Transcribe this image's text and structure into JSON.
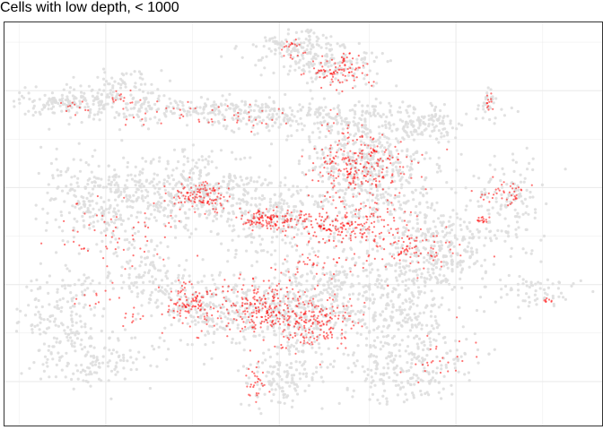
{
  "chart_data": {
    "type": "scatter",
    "title": "Cells with low depth, < 1000",
    "xlabel": "",
    "ylabel": "",
    "grid": true,
    "axes_ticks_shown": false,
    "colors": {
      "background_points": "#dedede",
      "highlight_points": "#ff0000",
      "panel_border": "#333333",
      "gridline": "#ebebeb"
    },
    "series": [
      {
        "role": "background",
        "seed": 7,
        "clusters": [
          {
            "cx": 0.11,
            "cy": 0.2,
            "sx": 0.04,
            "sy": 0.02,
            "n": 140
          },
          {
            "cx": 0.2,
            "cy": 0.17,
            "sx": 0.03,
            "sy": 0.03,
            "n": 90
          },
          {
            "cx": 0.34,
            "cy": 0.22,
            "sx": 0.09,
            "sy": 0.018,
            "n": 220
          },
          {
            "cx": 0.55,
            "cy": 0.24,
            "sx": 0.1,
            "sy": 0.02,
            "n": 220
          },
          {
            "cx": 0.71,
            "cy": 0.26,
            "sx": 0.03,
            "sy": 0.02,
            "n": 80
          },
          {
            "cx": 0.49,
            "cy": 0.06,
            "sx": 0.04,
            "sy": 0.02,
            "n": 120
          },
          {
            "cx": 0.55,
            "cy": 0.11,
            "sx": 0.04,
            "sy": 0.025,
            "n": 130
          },
          {
            "cx": 0.18,
            "cy": 0.44,
            "sx": 0.06,
            "sy": 0.05,
            "n": 330
          },
          {
            "cx": 0.32,
            "cy": 0.42,
            "sx": 0.055,
            "sy": 0.045,
            "n": 280
          },
          {
            "cx": 0.45,
            "cy": 0.48,
            "sx": 0.06,
            "sy": 0.05,
            "n": 280
          },
          {
            "cx": 0.62,
            "cy": 0.41,
            "sx": 0.06,
            "sy": 0.07,
            "n": 300
          },
          {
            "cx": 0.6,
            "cy": 0.33,
            "sx": 0.05,
            "sy": 0.05,
            "n": 220
          },
          {
            "cx": 0.74,
            "cy": 0.55,
            "sx": 0.04,
            "sy": 0.05,
            "n": 200
          },
          {
            "cx": 0.68,
            "cy": 0.62,
            "sx": 0.05,
            "sy": 0.05,
            "n": 200
          },
          {
            "cx": 0.1,
            "cy": 0.73,
            "sx": 0.04,
            "sy": 0.08,
            "n": 200
          },
          {
            "cx": 0.31,
            "cy": 0.7,
            "sx": 0.04,
            "sy": 0.04,
            "n": 120
          },
          {
            "cx": 0.42,
            "cy": 0.71,
            "sx": 0.06,
            "sy": 0.04,
            "n": 220
          },
          {
            "cx": 0.52,
            "cy": 0.73,
            "sx": 0.05,
            "sy": 0.04,
            "n": 200
          },
          {
            "cx": 0.66,
            "cy": 0.74,
            "sx": 0.04,
            "sy": 0.04,
            "n": 160
          },
          {
            "cx": 0.68,
            "cy": 0.86,
            "sx": 0.06,
            "sy": 0.04,
            "n": 230
          },
          {
            "cx": 0.46,
            "cy": 0.88,
            "sx": 0.03,
            "sy": 0.04,
            "n": 120
          },
          {
            "cx": 0.85,
            "cy": 0.45,
            "sx": 0.03,
            "sy": 0.06,
            "n": 130
          },
          {
            "cx": 0.89,
            "cy": 0.67,
            "sx": 0.03,
            "sy": 0.02,
            "n": 60
          },
          {
            "cx": 0.81,
            "cy": 0.2,
            "sx": 0.01,
            "sy": 0.02,
            "n": 30
          },
          {
            "cx": 0.17,
            "cy": 0.84,
            "sx": 0.05,
            "sy": 0.03,
            "n": 100
          },
          {
            "cx": 0.54,
            "cy": 0.64,
            "sx": 0.04,
            "sy": 0.03,
            "n": 120
          },
          {
            "cx": 0.23,
            "cy": 0.62,
            "sx": 0.03,
            "sy": 0.04,
            "n": 100
          }
        ]
      },
      {
        "role": "highlight",
        "seed": 19,
        "clusters": [
          {
            "cx": 0.555,
            "cy": 0.12,
            "sx": 0.025,
            "sy": 0.02,
            "n": 90
          },
          {
            "cx": 0.48,
            "cy": 0.07,
            "sx": 0.02,
            "sy": 0.015,
            "n": 20
          },
          {
            "cx": 0.59,
            "cy": 0.35,
            "sx": 0.04,
            "sy": 0.04,
            "n": 200
          },
          {
            "cx": 0.33,
            "cy": 0.43,
            "sx": 0.025,
            "sy": 0.02,
            "n": 110
          },
          {
            "cx": 0.45,
            "cy": 0.49,
            "sx": 0.03,
            "sy": 0.015,
            "n": 120
          },
          {
            "cx": 0.56,
            "cy": 0.51,
            "sx": 0.04,
            "sy": 0.02,
            "n": 130
          },
          {
            "cx": 0.68,
            "cy": 0.56,
            "sx": 0.04,
            "sy": 0.025,
            "n": 80
          },
          {
            "cx": 0.31,
            "cy": 0.7,
            "sx": 0.02,
            "sy": 0.025,
            "n": 100
          },
          {
            "cx": 0.43,
            "cy": 0.71,
            "sx": 0.04,
            "sy": 0.035,
            "n": 220
          },
          {
            "cx": 0.52,
            "cy": 0.74,
            "sx": 0.03,
            "sy": 0.035,
            "n": 170
          },
          {
            "cx": 0.42,
            "cy": 0.89,
            "sx": 0.01,
            "sy": 0.025,
            "n": 30
          },
          {
            "cx": 0.8,
            "cy": 0.49,
            "sx": 0.005,
            "sy": 0.005,
            "n": 15
          },
          {
            "cx": 0.84,
            "cy": 0.43,
            "sx": 0.02,
            "sy": 0.015,
            "n": 40
          },
          {
            "cx": 0.81,
            "cy": 0.2,
            "sx": 0.005,
            "sy": 0.01,
            "n": 12
          },
          {
            "cx": 0.2,
            "cy": 0.52,
            "sx": 0.06,
            "sy": 0.05,
            "n": 60
          },
          {
            "cx": 0.62,
            "cy": 0.46,
            "sx": 0.06,
            "sy": 0.06,
            "n": 90
          },
          {
            "cx": 0.35,
            "cy": 0.23,
            "sx": 0.09,
            "sy": 0.02,
            "n": 50
          },
          {
            "cx": 0.72,
            "cy": 0.84,
            "sx": 0.03,
            "sy": 0.03,
            "n": 25
          },
          {
            "cx": 0.91,
            "cy": 0.69,
            "sx": 0.004,
            "sy": 0.004,
            "n": 8
          },
          {
            "cx": 0.52,
            "cy": 0.6,
            "sx": 0.04,
            "sy": 0.02,
            "n": 40
          },
          {
            "cx": 0.14,
            "cy": 0.68,
            "sx": 0.02,
            "sy": 0.02,
            "n": 12
          },
          {
            "cx": 0.2,
            "cy": 0.19,
            "sx": 0.015,
            "sy": 0.01,
            "n": 14
          },
          {
            "cx": 0.11,
            "cy": 0.21,
            "sx": 0.02,
            "sy": 0.01,
            "n": 10
          },
          {
            "cx": 0.22,
            "cy": 0.73,
            "sx": 0.01,
            "sy": 0.015,
            "n": 10
          }
        ]
      }
    ]
  }
}
